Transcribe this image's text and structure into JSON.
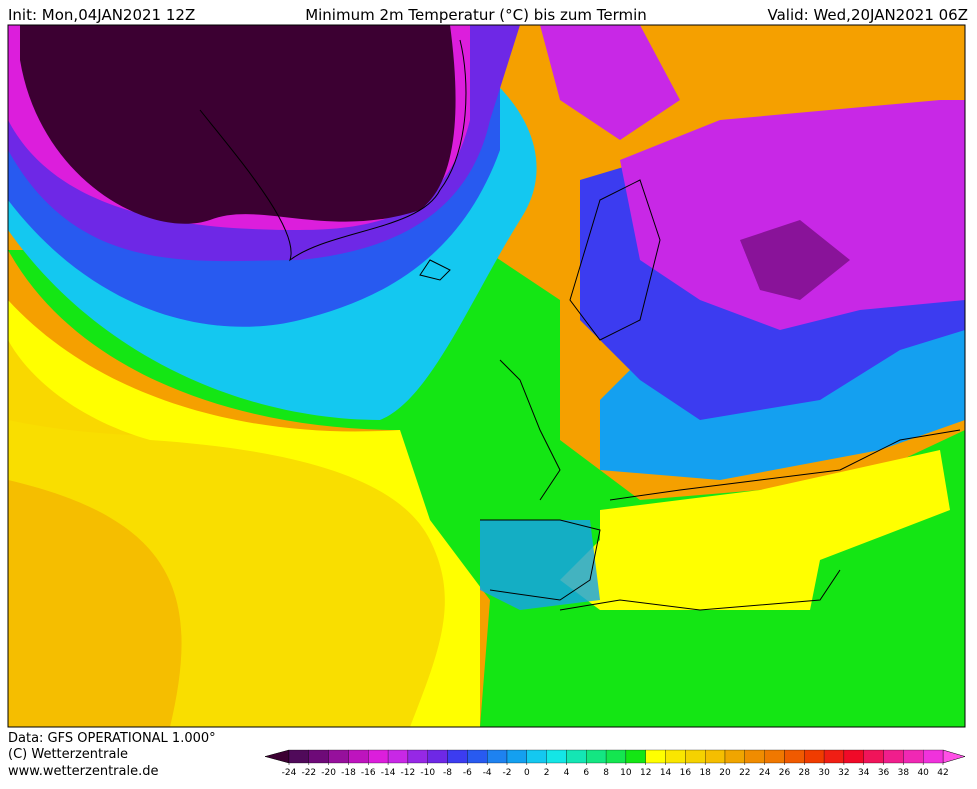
{
  "header": {
    "init": "Init: Mon,04JAN2021 12Z",
    "title": "Minimum 2m Temperatur (°C) bis zum Termin",
    "valid": "Valid: Wed,20JAN2021 06Z"
  },
  "footer": {
    "data_source": "Data: GFS OPERATIONAL 1.000°",
    "copyright": "(C) Wetterzentrale",
    "url": "www.wetterzentrale.de"
  },
  "legend": {
    "ticks": [
      -24,
      -22,
      -20,
      -18,
      -16,
      -14,
      -12,
      -10,
      -8,
      -6,
      -4,
      -2,
      0,
      2,
      4,
      6,
      8,
      10,
      12,
      14,
      16,
      18,
      20,
      22,
      24,
      26,
      28,
      30,
      32,
      34,
      36,
      38,
      40,
      42
    ],
    "under_color": "#3c0032",
    "over_color": "#ff50e6",
    "colors": [
      "#500a5a",
      "#6e0a78",
      "#96109c",
      "#be14be",
      "#dc1edc",
      "#c828e6",
      "#9628e6",
      "#6e28e6",
      "#3c3cf0",
      "#285af0",
      "#1e82f0",
      "#14a0f0",
      "#14c8f0",
      "#14e6e6",
      "#14e6b4",
      "#14e682",
      "#14e650",
      "#14e614",
      "#ffff00",
      "#fae600",
      "#f5d200",
      "#f5be00",
      "#f0a500",
      "#f08c00",
      "#f07800",
      "#f05a00",
      "#f03c00",
      "#f01e14",
      "#f00a28",
      "#f0145a",
      "#f01e8c",
      "#f028b4",
      "#f032dc"
    ]
  }
}
